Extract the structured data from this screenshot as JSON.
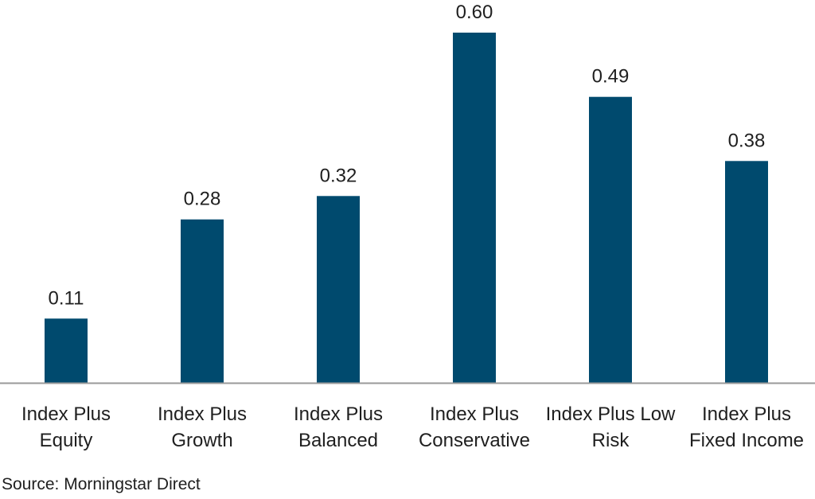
{
  "chart_data": {
    "type": "bar",
    "categories": [
      "Index Plus Equity",
      "Index Plus Growth",
      "Index Plus Balanced",
      "Index Plus Conservative",
      "Index Plus Low Risk",
      "Index Plus Fixed Income"
    ],
    "category_lines": [
      [
        "Index Plus",
        "Equity"
      ],
      [
        "Index Plus",
        "Growth"
      ],
      [
        "Index Plus",
        "Balanced"
      ],
      [
        "Index Plus",
        "Conservative"
      ],
      [
        "Index Plus Low",
        "Risk"
      ],
      [
        "Index Plus",
        "Fixed Income"
      ]
    ],
    "values": [
      0.11,
      0.28,
      0.32,
      0.6,
      0.49,
      0.38
    ],
    "value_labels": [
      "0.11",
      "0.28",
      "0.32",
      "0.60",
      "0.49",
      "0.38"
    ],
    "ylim": [
      0,
      0.6
    ],
    "bar_color": "#004a6e",
    "axis_color": "#9a9a9a",
    "grid": false,
    "legend": "none"
  },
  "source": "Source: Morningstar Direct"
}
